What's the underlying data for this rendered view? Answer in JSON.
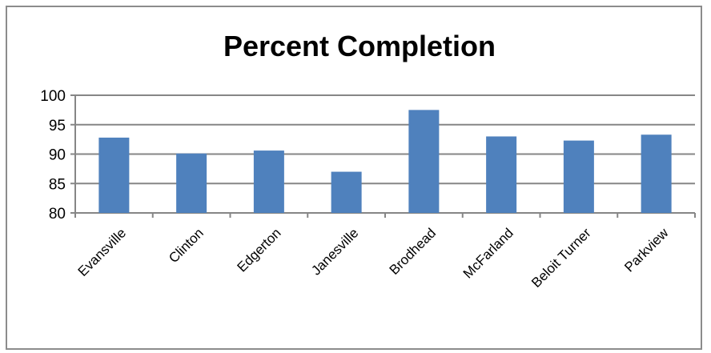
{
  "chart_data": {
    "type": "bar",
    "title": "Percent Completion",
    "xlabel": "",
    "ylabel": "",
    "categories": [
      "Evansville",
      "Clinton",
      "Edgerton",
      "Janesville",
      "Brodhead",
      "McFarland",
      "Beloit Turner",
      "Parkview"
    ],
    "values": [
      92.8,
      90.1,
      90.6,
      87.0,
      97.5,
      93.0,
      92.3,
      93.3
    ],
    "ylim": [
      80,
      100
    ],
    "yticks": [
      80,
      85,
      90,
      95,
      100
    ],
    "grid": true,
    "legend": "none",
    "bar_color": "#4f81bd",
    "grid_color": "#868686"
  }
}
